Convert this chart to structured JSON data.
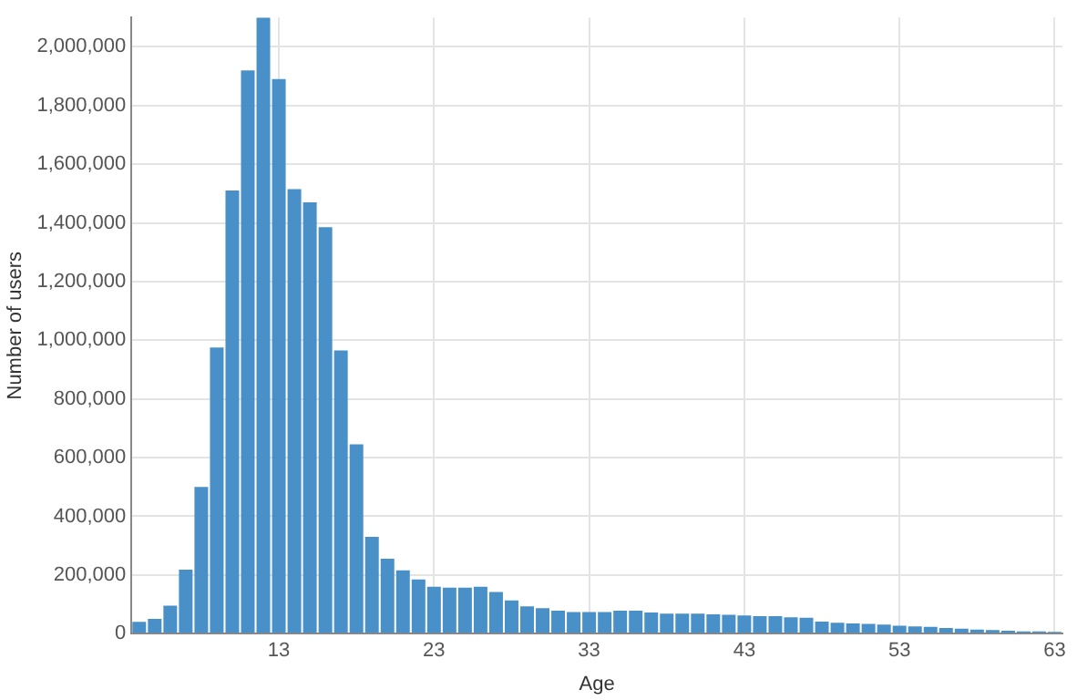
{
  "chart_data": {
    "type": "histogram",
    "xlabel": "Age",
    "ylabel": "Number of users",
    "bins": [
      3.5,
      4.5,
      5.5,
      6.5,
      7.5,
      8.5,
      9.5,
      10.5,
      11.5,
      12.5,
      13.5,
      14.5,
      15.5,
      16.5,
      17.5,
      18.5,
      19.5,
      20.5,
      21.5,
      22.5,
      23.5,
      24.5,
      25.5,
      26.5,
      27.5,
      28.5,
      29.5,
      30.5,
      31.5,
      32.5,
      33.5,
      34.5,
      35.5,
      36.5,
      37.5,
      38.5,
      39.5,
      40.5,
      41.5,
      42.5,
      43.5,
      44.5,
      45.5,
      46.5,
      47.5,
      48.5,
      49.5,
      50.5,
      51.5,
      52.5,
      53.5,
      54.5,
      55.5,
      56.5,
      57.5,
      58.5,
      59.5,
      60.5,
      61.5,
      62.5,
      63.5
    ],
    "values": [
      40000,
      50000,
      95000,
      218000,
      500000,
      975000,
      1510000,
      1920000,
      2100000,
      1890000,
      1515000,
      1470000,
      1385000,
      965000,
      645000,
      330000,
      255000,
      216000,
      185000,
      160000,
      157000,
      157000,
      160000,
      142000,
      113000,
      93000,
      87000,
      78000,
      74000,
      74000,
      74000,
      78000,
      78000,
      72000,
      68000,
      68000,
      68000,
      66000,
      64000,
      62000,
      60000,
      60000,
      56000,
      54000,
      41000,
      37000,
      35000,
      33000,
      31000,
      27000,
      25000,
      23000,
      19000,
      17000,
      14000,
      12000,
      10000,
      8000,
      8000,
      6000
    ],
    "color": "#4a90c8",
    "xlim": [
      3.5,
      63.5
    ],
    "xticks": [
      13,
      23,
      33,
      43,
      53,
      63
    ],
    "ylim": [
      0,
      2100000
    ],
    "yticks": [
      0,
      {
        "value": 200000,
        "label": "200,000"
      },
      {
        "value": 400000,
        "label": "400,000"
      },
      {
        "value": 600000,
        "label": "600,000"
      },
      {
        "value": 800000,
        "label": "800,000"
      },
      {
        "value": 1000000,
        "label": "1,000,000"
      },
      {
        "value": 1200000,
        "label": "1,200,000"
      },
      {
        "value": 1400000,
        "label": "1,400,000"
      },
      {
        "value": 1600000,
        "label": "1,600,000"
      },
      {
        "value": 1800000,
        "label": "1,800,000"
      },
      {
        "value": 2000000,
        "label": "2,000,000"
      }
    ],
    "grid": true,
    "legend": false
  }
}
